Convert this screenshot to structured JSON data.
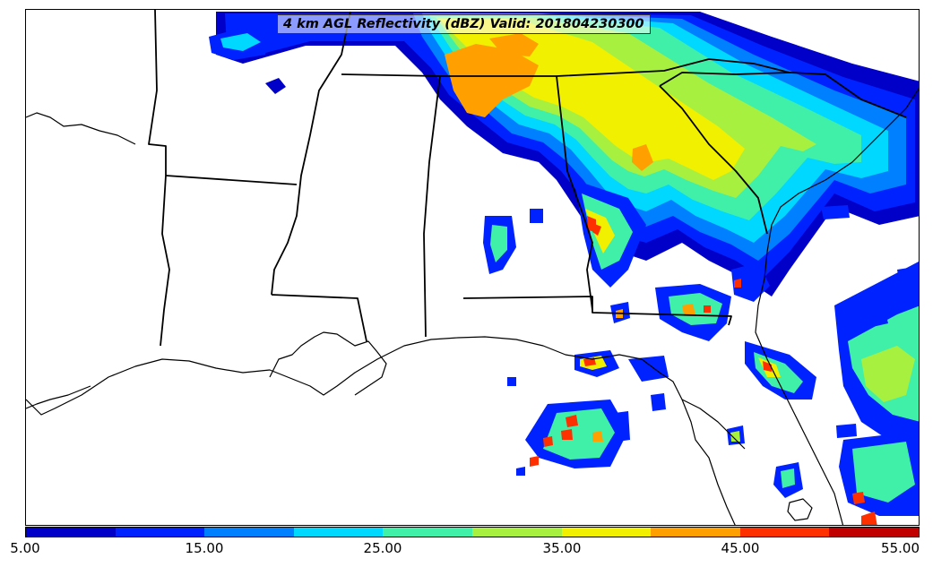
{
  "title": "4 km AGL Reflectivity (dBZ) Valid: 201804230300",
  "colorbar": {
    "colors": [
      "#0000c8",
      "#0022ff",
      "#0080ff",
      "#00d8ff",
      "#40f0a8",
      "#a8f040",
      "#f0f000",
      "#ffa000",
      "#ff3000",
      "#c00000"
    ],
    "tick_labels": [
      "5.00",
      "15.00",
      "25.00",
      "35.00",
      "45.00",
      "55.00"
    ]
  },
  "chart_data": {
    "type": "heatmap",
    "title": "4 km AGL Reflectivity (dBZ) Valid: 201804230300",
    "variable": "4 km AGL Reflectivity",
    "units": "dBZ",
    "valid_time": "201804230300",
    "colorbar_range": [
      5,
      55
    ],
    "colorbar_ticks": [
      5,
      15,
      25,
      35,
      45,
      55
    ],
    "levels": [
      5,
      10,
      15,
      20,
      25,
      30,
      35,
      40,
      45,
      50,
      55
    ]
  }
}
